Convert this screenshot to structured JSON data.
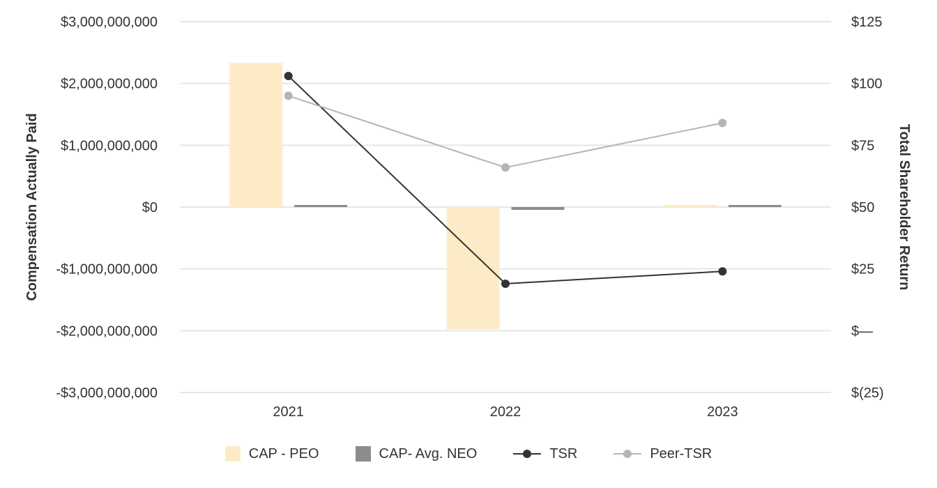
{
  "chart_data": {
    "type": "bar",
    "categories": [
      "2021",
      "2022",
      "2023"
    ],
    "left_axis": {
      "title": "Compensation Actually Paid",
      "ylim": [
        -3000000000,
        3000000000
      ],
      "ticks": [
        3000000000,
        2000000000,
        1000000000,
        0,
        -1000000000,
        -2000000000,
        -3000000000
      ],
      "tick_labels": [
        "$3,000,000,000",
        "$2,000,000,000",
        "$1,000,000,000",
        "$0",
        "-$1,000,000,000",
        "-$2,000,000,000",
        "-$3,000,000,000"
      ]
    },
    "right_axis": {
      "title": "Total Shareholder Return",
      "ylim": [
        -25,
        125
      ],
      "ticks": [
        125,
        100,
        75,
        50,
        25,
        0,
        -25
      ],
      "tick_labels": [
        "$125",
        "$100",
        "$75",
        "$50",
        "$25",
        "$—",
        "$(25)"
      ]
    },
    "series": [
      {
        "name": "CAP - PEO",
        "type": "bar",
        "axis": "left",
        "color": "#FDEBC8",
        "values": [
          2330000000,
          -1980000000,
          30000000
        ]
      },
      {
        "name": "CAP- Avg. NEO",
        "type": "bar",
        "axis": "left",
        "color": "#8C8C8C",
        "values": [
          30000000,
          -45000000,
          5000000
        ]
      },
      {
        "name": "TSR",
        "type": "line",
        "axis": "right",
        "color": "#333333",
        "values": [
          103,
          19,
          24
        ]
      },
      {
        "name": "Peer-TSR",
        "type": "line",
        "axis": "right",
        "color": "#B5B5B5",
        "values": [
          95,
          66,
          84
        ]
      }
    ],
    "grid": true,
    "legend_position": "bottom"
  }
}
